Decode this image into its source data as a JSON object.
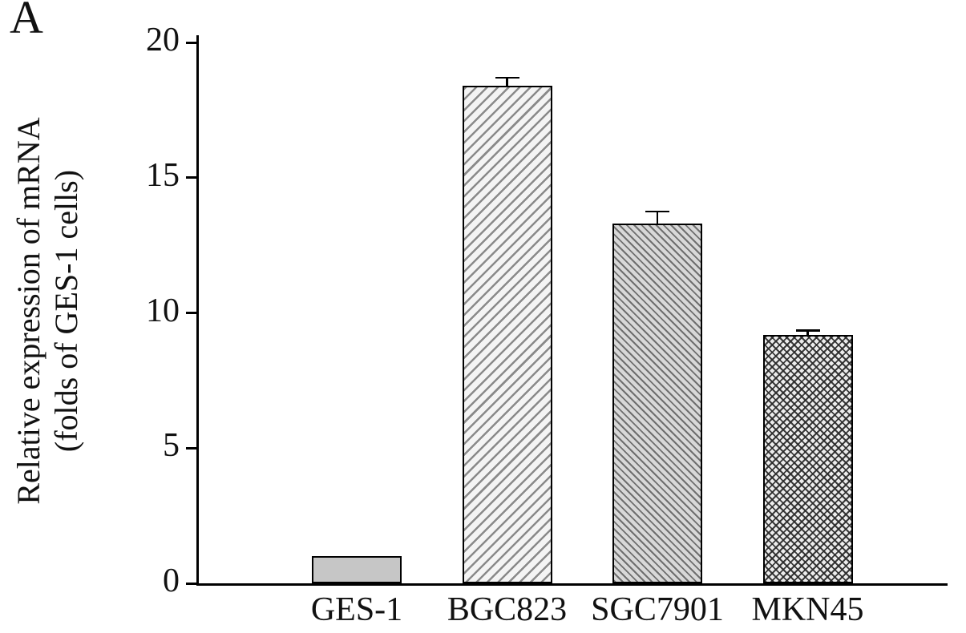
{
  "panel": {
    "label": "A"
  },
  "chart_data": {
    "type": "bar",
    "title": "",
    "ylabel_line1": "Relative expression of mRNA",
    "ylabel_line2": "(folds of GES-1 cells)",
    "xlabel": "",
    "categories": [
      "GES-1",
      "BGC823",
      "SGC7901",
      "MKN45"
    ],
    "values": [
      1.0,
      18.4,
      13.3,
      9.2
    ],
    "errors": [
      0,
      0.3,
      0.45,
      0.15
    ],
    "ylim": [
      0,
      20
    ],
    "yticks": [
      0,
      5,
      10,
      15,
      20
    ],
    "grid": false,
    "legend": null,
    "bar_patterns": [
      "solid",
      "diagonal-forward",
      "diagonal-back",
      "crosshatch"
    ],
    "bar_fill_base": "#c6c6c6",
    "axis_color": "#000000",
    "background_color": "#ffffff"
  }
}
